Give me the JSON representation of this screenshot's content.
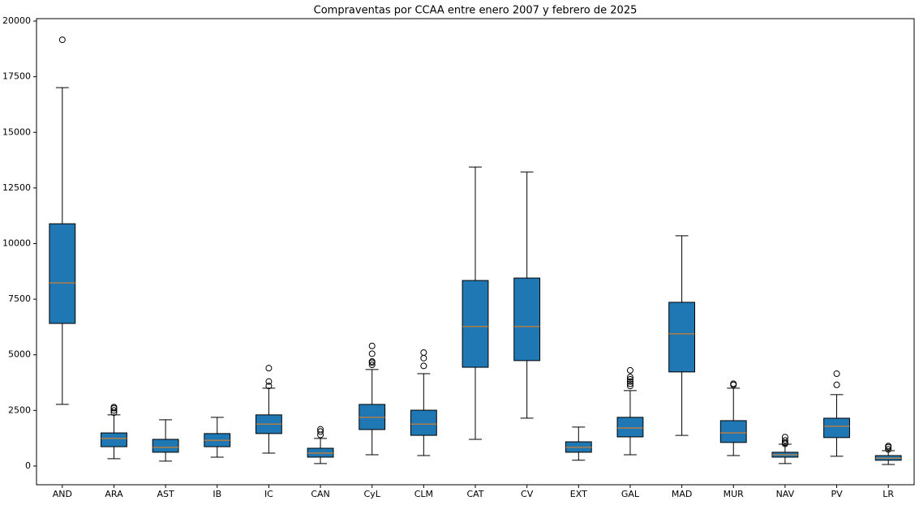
{
  "chart_data": {
    "type": "box",
    "title": "Compraventas por CCAA entre enero 2007 y febrero de 2025",
    "categories": [
      "AND",
      "ARA",
      "AST",
      "IB",
      "IC",
      "CAN",
      "CyL",
      "CLM",
      "CAT",
      "CV",
      "EXT",
      "GAL",
      "MAD",
      "MUR",
      "NAV",
      "PV",
      "LR"
    ],
    "color": "#1f77b4",
    "median_color": "#ff7f0e",
    "ylim": [
      -840,
      20110
    ],
    "yticks": [
      0,
      2500,
      5000,
      7500,
      10000,
      12500,
      15000,
      17500,
      20000
    ],
    "boxes": [
      {
        "min": 2770,
        "q1": 6410,
        "median": 8230,
        "q3": 10890,
        "max": 17010,
        "outliers": [
          19160
        ]
      },
      {
        "min": 330,
        "q1": 870,
        "median": 1240,
        "q3": 1490,
        "max": 2300,
        "outliers": [
          2400,
          2500,
          2600,
          2650
        ]
      },
      {
        "min": 220,
        "q1": 620,
        "median": 840,
        "q3": 1200,
        "max": 2080,
        "outliers": []
      },
      {
        "min": 400,
        "q1": 870,
        "median": 1160,
        "q3": 1460,
        "max": 2190,
        "outliers": []
      },
      {
        "min": 580,
        "q1": 1460,
        "median": 1890,
        "q3": 2300,
        "max": 3500,
        "outliers": [
          3600,
          3800,
          4400
        ]
      },
      {
        "min": 110,
        "q1": 400,
        "median": 580,
        "q3": 800,
        "max": 1240,
        "outliers": [
          1400,
          1550,
          1650
        ]
      },
      {
        "min": 510,
        "q1": 1640,
        "median": 2190,
        "q3": 2770,
        "max": 4340,
        "outliers": [
          4550,
          4650,
          4700,
          5050,
          5400
        ]
      },
      {
        "min": 470,
        "q1": 1380,
        "median": 1890,
        "q3": 2510,
        "max": 4150,
        "outliers": [
          4500,
          4850,
          5100
        ]
      },
      {
        "min": 1200,
        "q1": 4440,
        "median": 6270,
        "q3": 8340,
        "max": 13440,
        "outliers": []
      },
      {
        "min": 2150,
        "q1": 4740,
        "median": 6270,
        "q3": 8450,
        "max": 13220,
        "outliers": []
      },
      {
        "min": 260,
        "q1": 620,
        "median": 840,
        "q3": 1090,
        "max": 1750,
        "outliers": []
      },
      {
        "min": 510,
        "q1": 1310,
        "median": 1710,
        "q3": 2190,
        "max": 3390,
        "outliers": [
          3600,
          3700,
          3800,
          3900,
          4000,
          4300
        ]
      },
      {
        "min": 1380,
        "q1": 4230,
        "median": 5940,
        "q3": 7360,
        "max": 10350,
        "outliers": []
      },
      {
        "min": 470,
        "q1": 1060,
        "median": 1490,
        "q3": 2040,
        "max": 3500,
        "outliers": [
          3650,
          3700
        ]
      },
      {
        "min": 110,
        "q1": 400,
        "median": 510,
        "q3": 620,
        "max": 980,
        "outliers": [
          1000,
          1050,
          1150,
          1300
        ]
      },
      {
        "min": 440,
        "q1": 1280,
        "median": 1790,
        "q3": 2150,
        "max": 3210,
        "outliers": [
          3650,
          4150
        ]
      },
      {
        "min": 70,
        "q1": 260,
        "median": 360,
        "q3": 470,
        "max": 690,
        "outliers": [
          750,
          850,
          900
        ]
      }
    ]
  }
}
